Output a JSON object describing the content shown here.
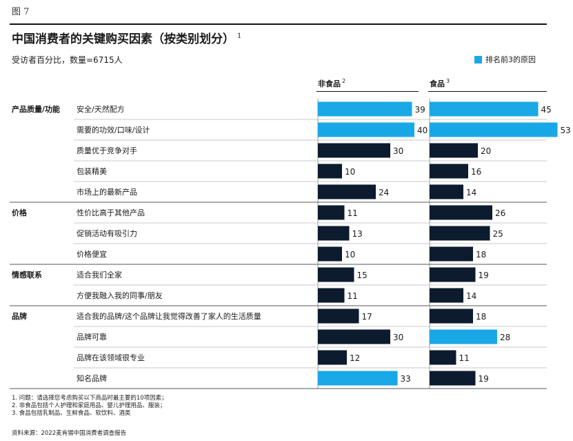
{
  "figure_label": "图 7",
  "title": "中国消费者的关键购买因素（按类别划分）",
  "title_note": "1",
  "subtitle": "受访者百分比，数量=6715人",
  "legend_label": "排名前3的原因",
  "colors": {
    "highlight": "#19a8e6",
    "normal": "#0d1b2e"
  },
  "chart_data": {
    "type": "bar",
    "title": "中国消费者的关键购买因素（按类别划分）",
    "xlabel": "",
    "ylabel": "受访者百分比",
    "xlim": [
      0,
      55
    ],
    "series": [
      {
        "name": "非食品",
        "note": "2"
      },
      {
        "name": "食品",
        "note": "3"
      }
    ],
    "groups": [
      {
        "category": "产品质量/功能",
        "rows": [
          {
            "label": "安全/天然配方",
            "values": [
              39,
              45
            ],
            "top3": [
              true,
              true
            ]
          },
          {
            "label": "需要的功效/口味/设计",
            "values": [
              40,
              53
            ],
            "top3": [
              true,
              true
            ]
          },
          {
            "label": "质量优于竞争对手",
            "values": [
              30,
              20
            ],
            "top3": [
              false,
              false
            ]
          },
          {
            "label": "包装精美",
            "values": [
              10,
              16
            ],
            "top3": [
              false,
              false
            ]
          },
          {
            "label": "市场上的最新产品",
            "values": [
              24,
              14
            ],
            "top3": [
              false,
              false
            ]
          }
        ]
      },
      {
        "category": "价格",
        "rows": [
          {
            "label": "性价比高于其他产品",
            "values": [
              11,
              26
            ],
            "top3": [
              false,
              false
            ]
          },
          {
            "label": "促销活动有吸引力",
            "values": [
              13,
              25
            ],
            "top3": [
              false,
              false
            ]
          },
          {
            "label": "价格便宜",
            "values": [
              10,
              18
            ],
            "top3": [
              false,
              false
            ]
          }
        ]
      },
      {
        "category": "情感联系",
        "rows": [
          {
            "label": "适合我们全家",
            "values": [
              15,
              19
            ],
            "top3": [
              false,
              false
            ]
          },
          {
            "label": "方便我融入我的同事/朋友",
            "values": [
              11,
              14
            ],
            "top3": [
              false,
              false
            ]
          }
        ]
      },
      {
        "category": "品牌",
        "rows": [
          {
            "label": "适合我的品牌/这个品牌让我觉得改善了家人的生活质量",
            "values": [
              17,
              18
            ],
            "top3": [
              false,
              false
            ]
          },
          {
            "label": "品牌可靠",
            "values": [
              30,
              28
            ],
            "top3": [
              false,
              true
            ]
          },
          {
            "label": "品牌在该领域很专业",
            "values": [
              12,
              11
            ],
            "top3": [
              false,
              false
            ]
          },
          {
            "label": "知名品牌",
            "values": [
              33,
              19
            ],
            "top3": [
              true,
              false
            ]
          }
        ]
      }
    ]
  },
  "footnotes": [
    "1. 问题：请选择您考虑购买以下商品时最主要的10项因素；",
    "2. 非食品包括个人护理和家庭用品、婴儿护理用品、服装；",
    "3. 食品包括乳制品、生鲜食品、软饮料、酒类"
  ],
  "source": "资料来源：2022麦肯锡中国消费者调查报告"
}
